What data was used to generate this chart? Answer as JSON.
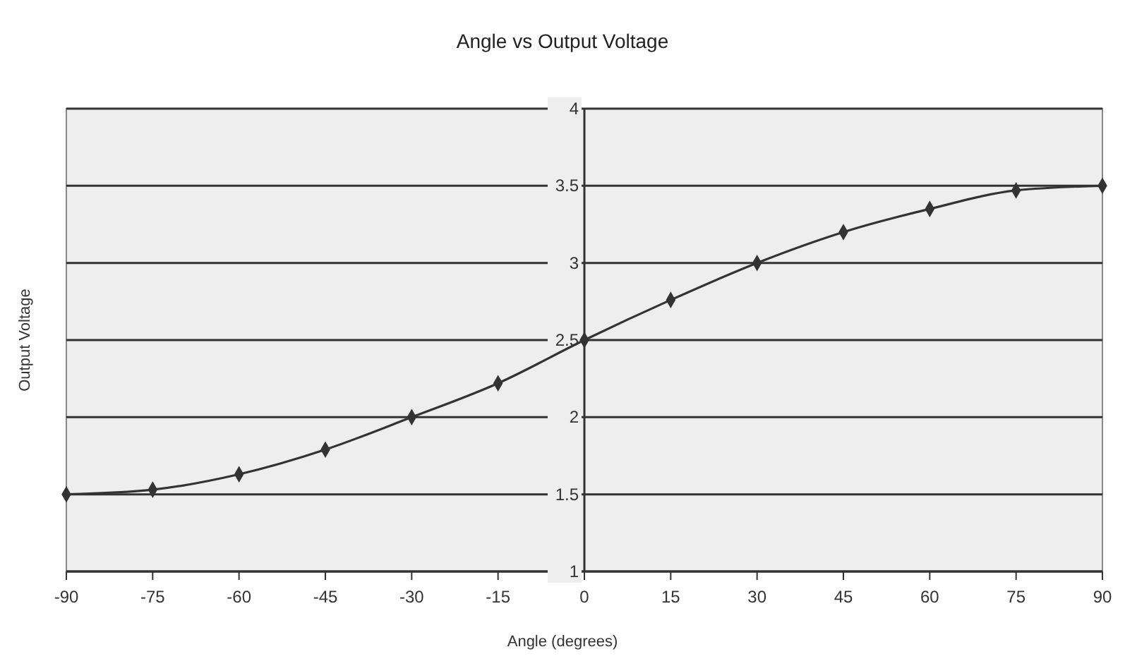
{
  "chart_data": {
    "type": "line",
    "title": "Angle vs Output Voltage",
    "xlabel": "Angle (degrees)",
    "ylabel": "Output Voltage",
    "x": [
      -90,
      -75,
      -60,
      -45,
      -30,
      -15,
      0,
      15,
      30,
      45,
      60,
      75,
      90
    ],
    "series": [
      {
        "color": "#333333",
        "values": [
          1.5,
          1.53,
          1.63,
          1.79,
          2.0,
          2.22,
          2.5,
          2.76,
          3.0,
          3.2,
          3.35,
          3.47,
          3.5
        ]
      }
    ],
    "xlim": [
      -90,
      90
    ],
    "xticks": [
      -90,
      -75,
      -60,
      -45,
      -30,
      -15,
      0,
      15,
      30,
      45,
      60,
      75,
      90
    ],
    "ylim": [
      1,
      4
    ],
    "yticks": [
      1,
      1.5,
      2,
      2.5,
      3,
      3.5,
      4
    ],
    "grid": "y",
    "marker": "diamond",
    "line_style": "solid"
  }
}
